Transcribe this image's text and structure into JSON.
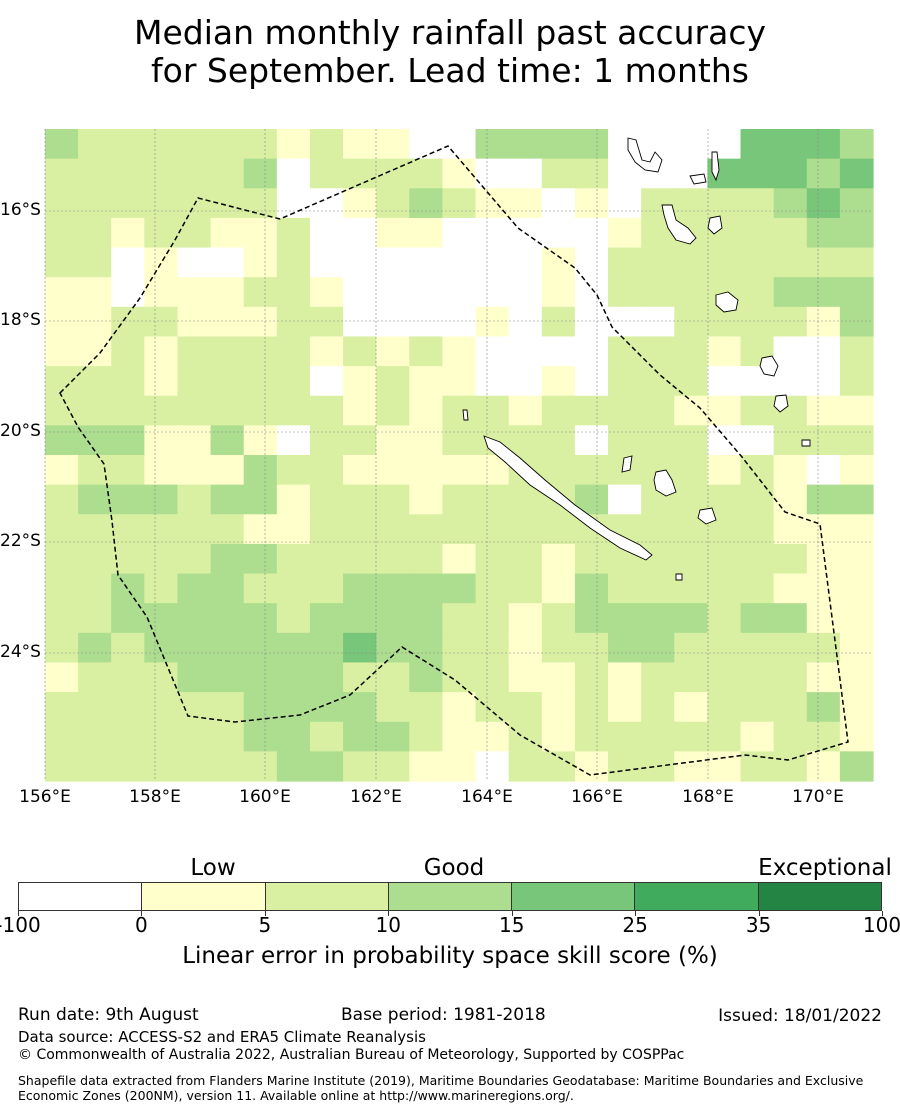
{
  "title": {
    "line1": "Median monthly rainfall past accuracy",
    "line2": "for September. Lead time: 1 months"
  },
  "map": {
    "lon_labels": [
      "156°E",
      "158°E",
      "160°E",
      "162°E",
      "164°E",
      "166°E",
      "168°E",
      "170°E"
    ],
    "lat_labels": [
      "16°S",
      "18°S",
      "20°S",
      "22°S",
      "24°S"
    ],
    "grid_rows": [
      "3222222121100333300004443",
      "2222223022221002200044434",
      "2222222001232110102222343",
      "2212211200110000012222233",
      "2201001200000001022222222",
      "1101112210000001022222333",
      "1122111220000102000222213",
      "1121222212121000022212002",
      "2221222201211001022200002",
      "2222222221212212222112211",
      "3331131022112222022200222",
      "1221113221111122222212101",
      "2333233122212222302222133",
      "2222221122222222222222111",
      "2222233222221221222222211",
      "2232332223333221322222111",
      "2233333233332212333323311",
      "2323333334332212233222221",
      "1222333332232211212222211",
      "2222223333221221212122231",
      "2222223323321121222221221",
      "2222222332211022122112213"
    ],
    "legend_colors": [
      "#ffffff",
      "#ffffcc",
      "#d9f0a3",
      "#addd8e",
      "#78c679",
      "#41ab5d",
      "#238443"
    ]
  },
  "colorbar": {
    "categories": [
      "Low",
      "Good",
      "Exceptional"
    ],
    "ticks": [
      "-100",
      "0",
      "5",
      "10",
      "15",
      "25",
      "35",
      "100"
    ],
    "label": "Linear error in probability space skill score (%)"
  },
  "footer": {
    "run_date": "Run date: 9th August",
    "base_period": "Base period: 1981-2018",
    "issued": "Issued: 18/01/2022",
    "data_source": "Data source: ACCESS-S2 and ERA5 Climate Reanalysis",
    "copyright": "© Commonwealth of Australia 2022, Australian Bureau of Meteorology, Supported by COSPPac",
    "shapefile": "Shapefile data extracted from Flanders Marine Institute (2019), Maritime Boundaries Geodatabase: Maritime Boundaries and Exclusive Economic Zones (200NM), version 11. Available online at http://www.marineregions.org/."
  }
}
